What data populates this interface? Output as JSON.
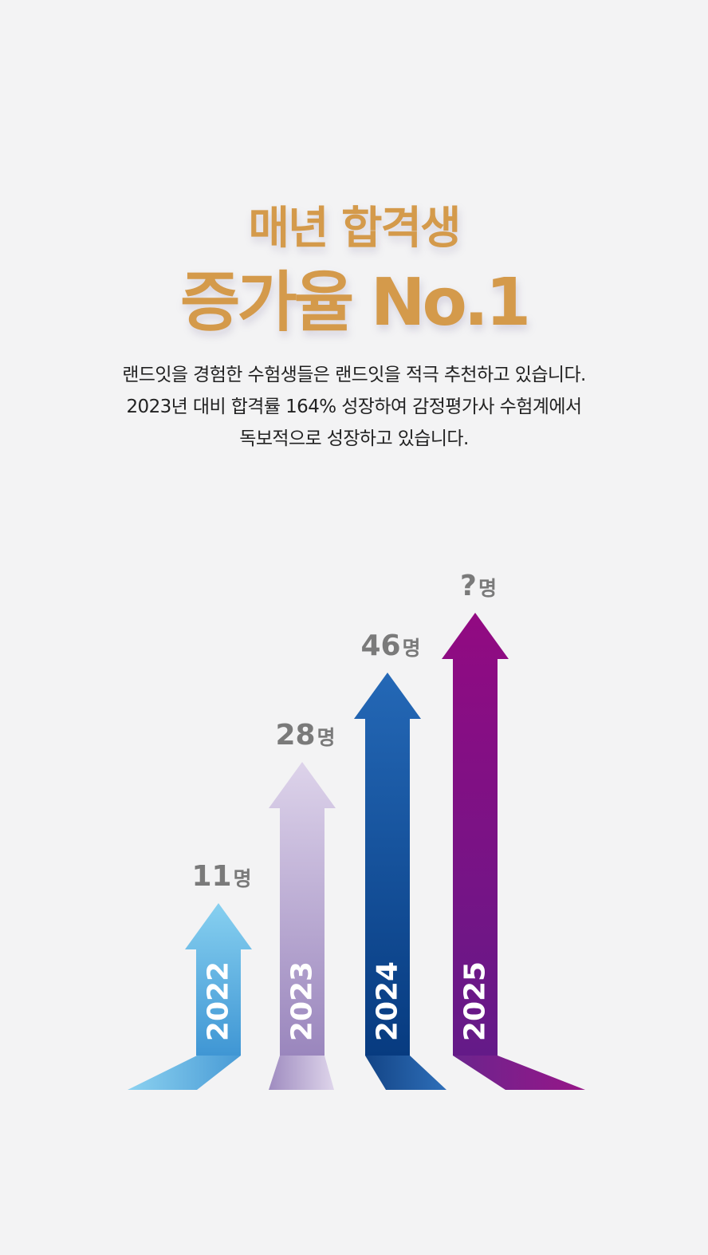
{
  "colors": {
    "title": "#d49a4b",
    "value_text": "#7a7a7a",
    "background": "#f3f3f4"
  },
  "header": {
    "line1": "매년 합격생",
    "line2": "증가율 No.1"
  },
  "description": {
    "lines": [
      "랜드잇을 경험한 수험생들은 랜드잇을 적극 추천하고 있습니다.",
      "2023년 대비 합격률 164% 성장하여 감정평가사 수험계에서",
      "독보적으로 성장하고 있습니다."
    ]
  },
  "chart_data": {
    "type": "bar",
    "categories": [
      "2022",
      "2023",
      "2024",
      "2025"
    ],
    "values": [
      11,
      28,
      46,
      null
    ],
    "value_labels": [
      {
        "number": "11",
        "unit": "명"
      },
      {
        "number": "28",
        "unit": "명"
      },
      {
        "number": "46",
        "unit": "명"
      },
      {
        "number": "?",
        "unit": "명"
      }
    ],
    "colors": [
      [
        "#87d0f0",
        "#3f96d4"
      ],
      [
        "#ddd3ea",
        "#9a86bd"
      ],
      [
        "#2468b6",
        "#073b80"
      ],
      [
        "#920a82",
        "#641a88"
      ]
    ],
    "title": "",
    "xlabel": "",
    "ylabel": "",
    "grid": false
  }
}
